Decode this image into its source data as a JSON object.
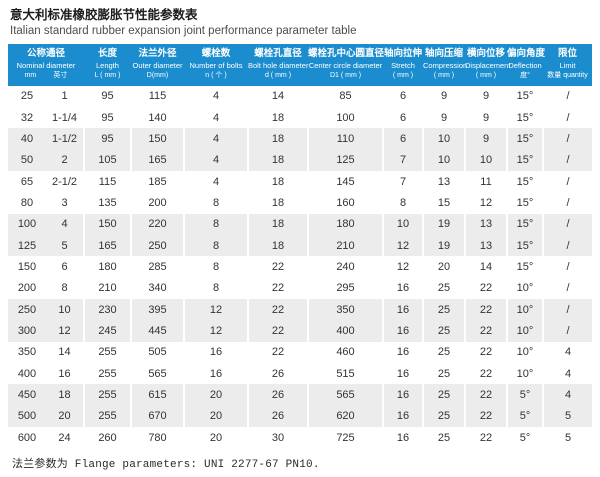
{
  "page": {
    "title_zh": "意大利标准橡胶膨胀节性能参数表",
    "title_en": "Italian standard rubber expansion joint performance parameter table",
    "footer": "法兰参数为 Flange parameters: UNI 2277-67 PN10."
  },
  "colors": {
    "header_bg": "#1b8dce",
    "stripe_bg": "#ececec",
    "header_text": "#ffffff",
    "body_text": "#333333"
  },
  "table": {
    "columns": [
      {
        "zh": "公称通径",
        "en": "Nominal diameter",
        "unit_mm": "mm",
        "unit_inch": "英寸",
        "span": 2
      },
      {
        "zh": "长度",
        "en": "Length",
        "unit": "L ( mm )"
      },
      {
        "zh": "法兰外径",
        "en": "Outer diameter",
        "unit": "D(mm)"
      },
      {
        "zh": "螺栓数",
        "en": "Number of bolts",
        "unit": "n ( 个 )"
      },
      {
        "zh": "螺栓孔直径",
        "en": "Bolt hole diameter",
        "unit": "d ( mm )"
      },
      {
        "zh": "螺栓孔中心圆直径",
        "en": "Center circle diameter",
        "unit": "D1 ( mm )"
      },
      {
        "zh": "轴向拉伸",
        "en": "Stretch",
        "unit": "( mm )"
      },
      {
        "zh": "轴向压缩",
        "en": "Compression",
        "unit": "( mm )"
      },
      {
        "zh": "横向位移",
        "en": "Displacement",
        "unit": "( mm )"
      },
      {
        "zh": "偏向角度",
        "en": "Deflection",
        "unit": "度°"
      },
      {
        "zh": "限位",
        "en": "Limit",
        "unit": "数量 quantity"
      }
    ],
    "rows": [
      [
        "25",
        "1",
        "95",
        "115",
        "4",
        "14",
        "85",
        "6",
        "9",
        "9",
        "15°",
        "/"
      ],
      [
        "32",
        "1-1/4",
        "95",
        "140",
        "4",
        "18",
        "100",
        "6",
        "9",
        "9",
        "15°",
        "/"
      ],
      [
        "40",
        "1-1/2",
        "95",
        "150",
        "4",
        "18",
        "110",
        "6",
        "10",
        "9",
        "15°",
        "/"
      ],
      [
        "50",
        "2",
        "105",
        "165",
        "4",
        "18",
        "125",
        "7",
        "10",
        "10",
        "15°",
        "/"
      ],
      [
        "65",
        "2-1/2",
        "115",
        "185",
        "4",
        "18",
        "145",
        "7",
        "13",
        "11",
        "15°",
        "/"
      ],
      [
        "80",
        "3",
        "135",
        "200",
        "8",
        "18",
        "160",
        "8",
        "15",
        "12",
        "15°",
        "/"
      ],
      [
        "100",
        "4",
        "150",
        "220",
        "8",
        "18",
        "180",
        "10",
        "19",
        "13",
        "15°",
        "/"
      ],
      [
        "125",
        "5",
        "165",
        "250",
        "8",
        "18",
        "210",
        "12",
        "19",
        "13",
        "15°",
        "/"
      ],
      [
        "150",
        "6",
        "180",
        "285",
        "8",
        "22",
        "240",
        "12",
        "20",
        "14",
        "15°",
        "/"
      ],
      [
        "200",
        "8",
        "210",
        "340",
        "8",
        "22",
        "295",
        "16",
        "25",
        "22",
        "10°",
        "/"
      ],
      [
        "250",
        "10",
        "230",
        "395",
        "12",
        "22",
        "350",
        "16",
        "25",
        "22",
        "10°",
        "/"
      ],
      [
        "300",
        "12",
        "245",
        "445",
        "12",
        "22",
        "400",
        "16",
        "25",
        "22",
        "10°",
        "/"
      ],
      [
        "350",
        "14",
        "255",
        "505",
        "16",
        "22",
        "460",
        "16",
        "25",
        "22",
        "10°",
        "4"
      ],
      [
        "400",
        "16",
        "255",
        "565",
        "16",
        "26",
        "515",
        "16",
        "25",
        "22",
        "10°",
        "4"
      ],
      [
        "450",
        "18",
        "255",
        "615",
        "20",
        "26",
        "565",
        "16",
        "25",
        "22",
        "5°",
        "4"
      ],
      [
        "500",
        "20",
        "255",
        "670",
        "20",
        "26",
        "620",
        "16",
        "25",
        "22",
        "5°",
        "5"
      ],
      [
        "600",
        "24",
        "260",
        "780",
        "20",
        "30",
        "725",
        "16",
        "25",
        "22",
        "5°",
        "5"
      ]
    ]
  }
}
